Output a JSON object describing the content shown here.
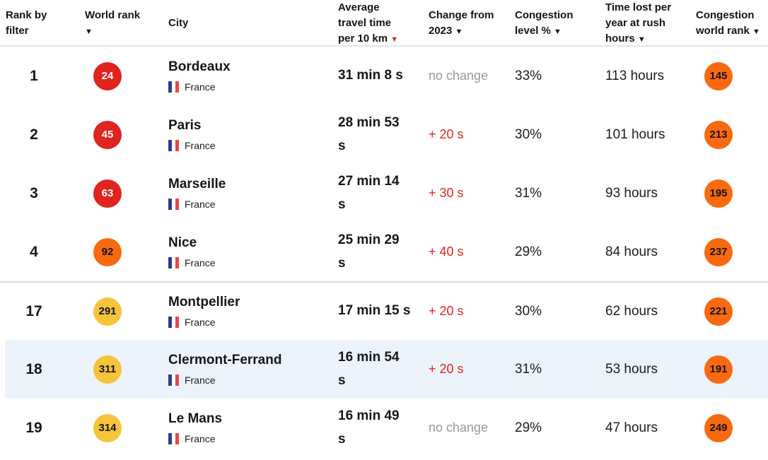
{
  "colors": {
    "badge_red": "#e0241e",
    "badge_orange": "#f9690f",
    "badge_yellow": "#f6c33a",
    "change_increase_red": "#e0251f",
    "change_none_gray": "#9a9a9a",
    "sort_active_arrow_red": "#e0251f",
    "highlight_row_blue": "#edf3fa",
    "flag_blue": "#2d3b8e",
    "flag_red": "#e8464a"
  },
  "table": {
    "columns": [
      {
        "label": "Rank by filter",
        "arrow": null,
        "arrow_color": "dark"
      },
      {
        "label": "World rank",
        "arrow": "▼",
        "arrow_color": "dark"
      },
      {
        "label": "City",
        "arrow": null,
        "arrow_color": "dark"
      },
      {
        "label": "Average travel time per 10 km",
        "arrow": "▼",
        "arrow_color": "red"
      },
      {
        "label": "Change from 2023",
        "arrow": "▼",
        "arrow_color": "dark"
      },
      {
        "label": "Congestion level %",
        "arrow": "▼",
        "arrow_color": "dark"
      },
      {
        "label": "Time lost per year at rush hours",
        "arrow": "▼",
        "arrow_color": "dark"
      },
      {
        "label": "Congestion world rank",
        "arrow": "▼",
        "arrow_color": "dark"
      }
    ],
    "rows": [
      {
        "rank": "1",
        "world_rank": {
          "value": "24",
          "variant": "red"
        },
        "city": "Bordeaux",
        "country": "France",
        "travel_time": "31 min 8 s",
        "change": {
          "text": "no change",
          "variant": "none"
        },
        "congestion_level": "33%",
        "time_lost": "113 hours",
        "congestion_world_rank": {
          "value": "145",
          "variant": "orange"
        },
        "highlighted": false
      },
      {
        "rank": "2",
        "world_rank": {
          "value": "45",
          "variant": "red"
        },
        "city": "Paris",
        "country": "France",
        "travel_time": "28 min 53\ns",
        "change": {
          "text": "+ 20 s",
          "variant": "increase"
        },
        "congestion_level": "30%",
        "time_lost": "101 hours",
        "congestion_world_rank": {
          "value": "213",
          "variant": "orange"
        },
        "highlighted": false
      },
      {
        "rank": "3",
        "world_rank": {
          "value": "63",
          "variant": "red"
        },
        "city": "Marseille",
        "country": "France",
        "travel_time": "27 min 14\ns",
        "change": {
          "text": "+ 30 s",
          "variant": "increase"
        },
        "congestion_level": "31%",
        "time_lost": "93 hours",
        "congestion_world_rank": {
          "value": "195",
          "variant": "orange"
        },
        "highlighted": false
      },
      {
        "rank": "4",
        "world_rank": {
          "value": "92",
          "variant": "orange"
        },
        "city": "Nice",
        "country": "France",
        "travel_time": "25 min 29\ns",
        "change": {
          "text": "+ 40 s",
          "variant": "increase"
        },
        "congestion_level": "29%",
        "time_lost": "84 hours",
        "congestion_world_rank": {
          "value": "237",
          "variant": "orange"
        },
        "highlighted": false
      },
      {
        "rank": "17",
        "world_rank": {
          "value": "291",
          "variant": "yellow"
        },
        "city": "Montpellier",
        "country": "France",
        "travel_time": "17 min 15 s",
        "change": {
          "text": "+ 20 s",
          "variant": "increase"
        },
        "congestion_level": "30%",
        "time_lost": "62 hours",
        "congestion_world_rank": {
          "value": "221",
          "variant": "orange"
        },
        "highlighted": false
      },
      {
        "rank": "18",
        "world_rank": {
          "value": "311",
          "variant": "yellow"
        },
        "city": "Clermont-Ferrand",
        "country": "France",
        "travel_time": "16 min 54\ns",
        "change": {
          "text": "+ 20 s",
          "variant": "increase"
        },
        "congestion_level": "31%",
        "time_lost": "53 hours",
        "congestion_world_rank": {
          "value": "191",
          "variant": "orange"
        },
        "highlighted": true
      },
      {
        "rank": "19",
        "world_rank": {
          "value": "314",
          "variant": "yellow"
        },
        "city": "Le Mans",
        "country": "France",
        "travel_time": "16 min 49\ns",
        "change": {
          "text": "no change",
          "variant": "none"
        },
        "congestion_level": "29%",
        "time_lost": "47 hours",
        "congestion_world_rank": {
          "value": "249",
          "variant": "orange"
        },
        "highlighted": false
      }
    ]
  }
}
